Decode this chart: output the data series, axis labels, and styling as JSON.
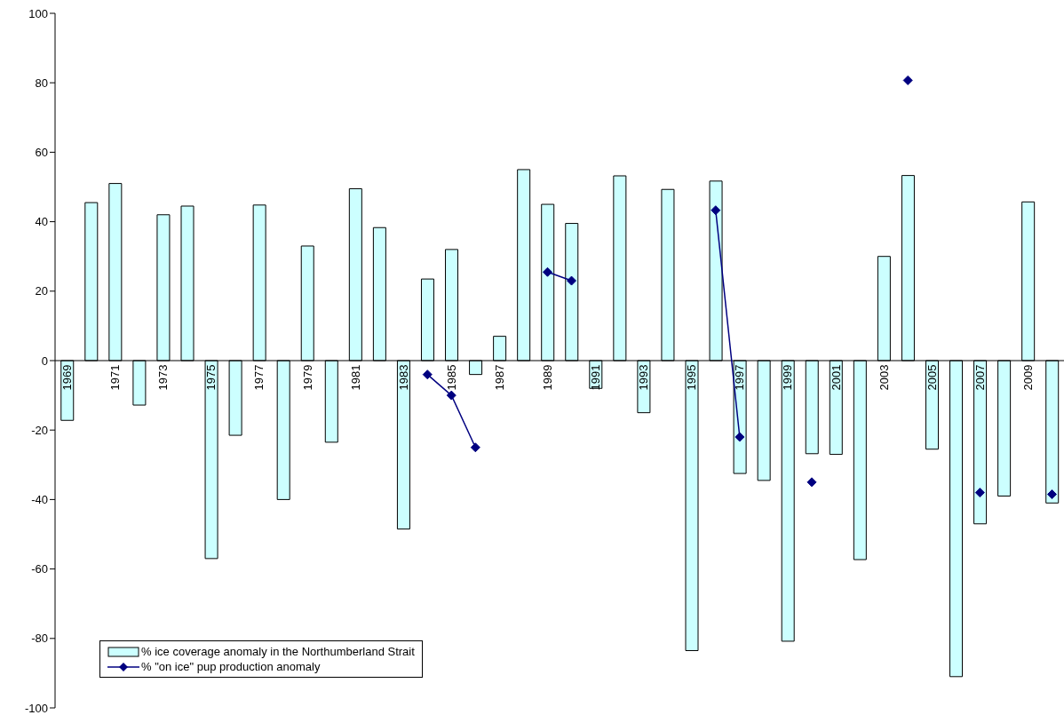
{
  "chart_data": {
    "type": "bar",
    "categories": [
      "1969",
      null,
      "1971",
      null,
      "1973",
      null,
      "1975",
      null,
      "1977",
      null,
      "1979",
      null,
      "1981",
      null,
      "1983",
      null,
      "1985",
      null,
      "1987",
      null,
      "1989",
      null,
      "1991",
      null,
      "1993",
      null,
      "1995",
      null,
      "1997",
      null,
      "1999",
      null,
      "2001",
      null,
      "2003",
      null,
      "2005",
      null,
      "2007",
      null,
      "2009",
      null
    ],
    "series": [
      {
        "name": "% ice coverage anomaly in the Northumberland Strait",
        "color": "#ccffff",
        "values": [
          -17.2,
          45.5,
          51,
          -12.8,
          42,
          44.5,
          -57,
          -21.5,
          44.8,
          -40,
          33,
          -23.5,
          49.5,
          38.3,
          -48.5,
          23.5,
          32,
          -4,
          7,
          55,
          45,
          39.5,
          -8,
          53.2,
          -15,
          49.3,
          -83.5,
          51.7,
          -32.5,
          -34.5,
          -80.8,
          -26.8,
          -27,
          -57.3,
          30,
          53.3,
          -25.5,
          -91,
          -47,
          -39,
          45.7,
          -41
        ]
      },
      {
        "name": "% \"on ice\" pup production anomaly",
        "type": "line",
        "color": "#000080",
        "values": [
          null,
          null,
          null,
          null,
          null,
          null,
          null,
          null,
          null,
          null,
          null,
          null,
          null,
          null,
          null,
          -4,
          -10,
          -25,
          null,
          null,
          25.5,
          23,
          null,
          null,
          null,
          null,
          null,
          43.3,
          -22,
          null,
          null,
          -35,
          null,
          null,
          null,
          80.7,
          null,
          null,
          -38,
          null,
          null,
          -38.5
        ]
      }
    ],
    "ylim": [
      -100,
      100
    ],
    "yticks": [
      -100,
      -80,
      -60,
      -40,
      -20,
      0,
      20,
      40,
      60,
      80,
      100
    ],
    "grid": false,
    "legend": "bottom left",
    "marker": "diamond",
    "line_style": "solid"
  }
}
